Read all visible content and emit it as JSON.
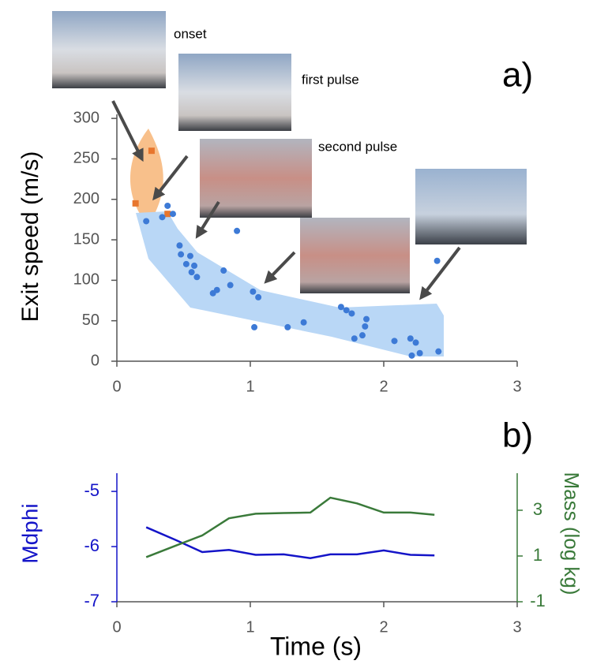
{
  "chart_data": [
    {
      "type": "scatter",
      "panel_label": "a)",
      "y_label": "Exit speed (m/s)",
      "annotations": [
        "onset",
        "first pulse",
        "second pulse"
      ],
      "xlim": [
        0,
        3
      ],
      "xticks": [
        0,
        1,
        2,
        3
      ],
      "ylim": [
        0,
        305
      ],
      "yticks": [
        0,
        50,
        100,
        150,
        200,
        250,
        300
      ],
      "series": [
        {
          "color": "#e8762d",
          "x": [
            0.14,
            0.26,
            0.38
          ],
          "values": [
            195,
            260,
            182
          ]
        },
        {
          "color": "#3d7ad6",
          "x": [
            0.22,
            0.34,
            0.38,
            0.42,
            0.47,
            0.48,
            0.52,
            0.55,
            0.56,
            0.58,
            0.6,
            0.72,
            0.75,
            0.8,
            0.85,
            0.9,
            1.02,
            1.03,
            1.06,
            1.28,
            1.4,
            1.68,
            1.72,
            1.76,
            1.78,
            1.84,
            1.86,
            1.87,
            2.08,
            2.2,
            2.21,
            2.24,
            2.27,
            2.4,
            2.41
          ],
          "values": [
            173,
            178,
            192,
            182,
            143,
            132,
            120,
            130,
            110,
            118,
            104,
            84,
            88,
            112,
            94,
            161,
            86,
            42,
            79,
            42,
            48,
            67,
            63,
            59,
            28,
            32,
            43,
            52,
            25,
            28,
            7,
            23,
            10,
            124,
            12
          ]
        }
      ]
    },
    {
      "type": "line",
      "panel_label": "b)",
      "x_label": "Time (s)",
      "y_label": "Mdphi",
      "y2_label": "Mass (log kg)",
      "xlim": [
        0,
        3
      ],
      "xticks": [
        0,
        1,
        2,
        3
      ],
      "ylim": [
        -7,
        -4.67
      ],
      "yticks": [
        -5,
        -6,
        -7
      ],
      "y2lim": [
        -1,
        4.62
      ],
      "y2ticks": [
        3,
        1,
        -1
      ],
      "x": [
        0.22,
        0.44,
        0.64,
        0.84,
        1.04,
        1.25,
        1.45,
        1.6,
        1.8,
        2.0,
        2.2,
        2.38
      ],
      "series": [
        {
          "color": "#1414c8",
          "values": [
            -5.65,
            -5.88,
            -6.1,
            -6.06,
            -6.15,
            -6.14,
            -6.21,
            -6.14,
            -6.14,
            -6.07,
            -6.15,
            -6.16
          ]
        },
        {
          "color": "#3a7a3a",
          "axis": "y2",
          "values": [
            0.95,
            1.45,
            1.9,
            2.65,
            2.85,
            2.88,
            2.9,
            3.55,
            3.3,
            2.9,
            2.9,
            2.8
          ]
        }
      ]
    }
  ]
}
